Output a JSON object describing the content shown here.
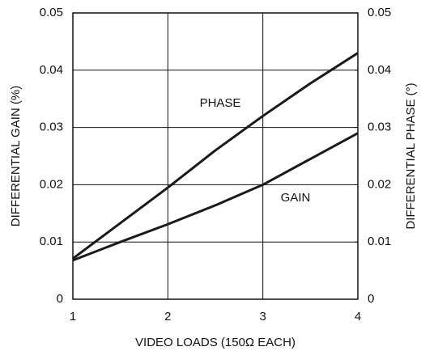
{
  "chart_data": {
    "type": "line",
    "xlabel": "VIDEO LOADS (150Ω EACH)",
    "ylabel": "DIFFERENTIAL GAIN (%)",
    "y2label": "DIFFERENTIAL PHASE (°)",
    "x": [
      1,
      1.5,
      2,
      2.5,
      3,
      3.5,
      4
    ],
    "series": [
      {
        "name": "PHASE",
        "color": "#1a1a1a",
        "axis": "y2",
        "values": [
          0.0071,
          0.0133,
          0.0195,
          0.026,
          0.032,
          0.0377,
          0.043
        ]
      },
      {
        "name": "GAIN",
        "color": "#1a1a1a",
        "values": [
          0.0068,
          0.01,
          0.0131,
          0.0164,
          0.02,
          0.0245,
          0.029
        ]
      }
    ],
    "xlim": [
      1,
      4
    ],
    "xticks": [
      1,
      2,
      3,
      4
    ],
    "ylim": [
      0,
      0.05
    ],
    "yticks": [
      0,
      0.01,
      0.02,
      0.03,
      0.04,
      0.05
    ],
    "y2lim": [
      0,
      0.05
    ],
    "y2ticks": [
      0,
      0.01,
      0.02,
      0.03,
      0.04,
      0.05
    ],
    "grid": true
  }
}
